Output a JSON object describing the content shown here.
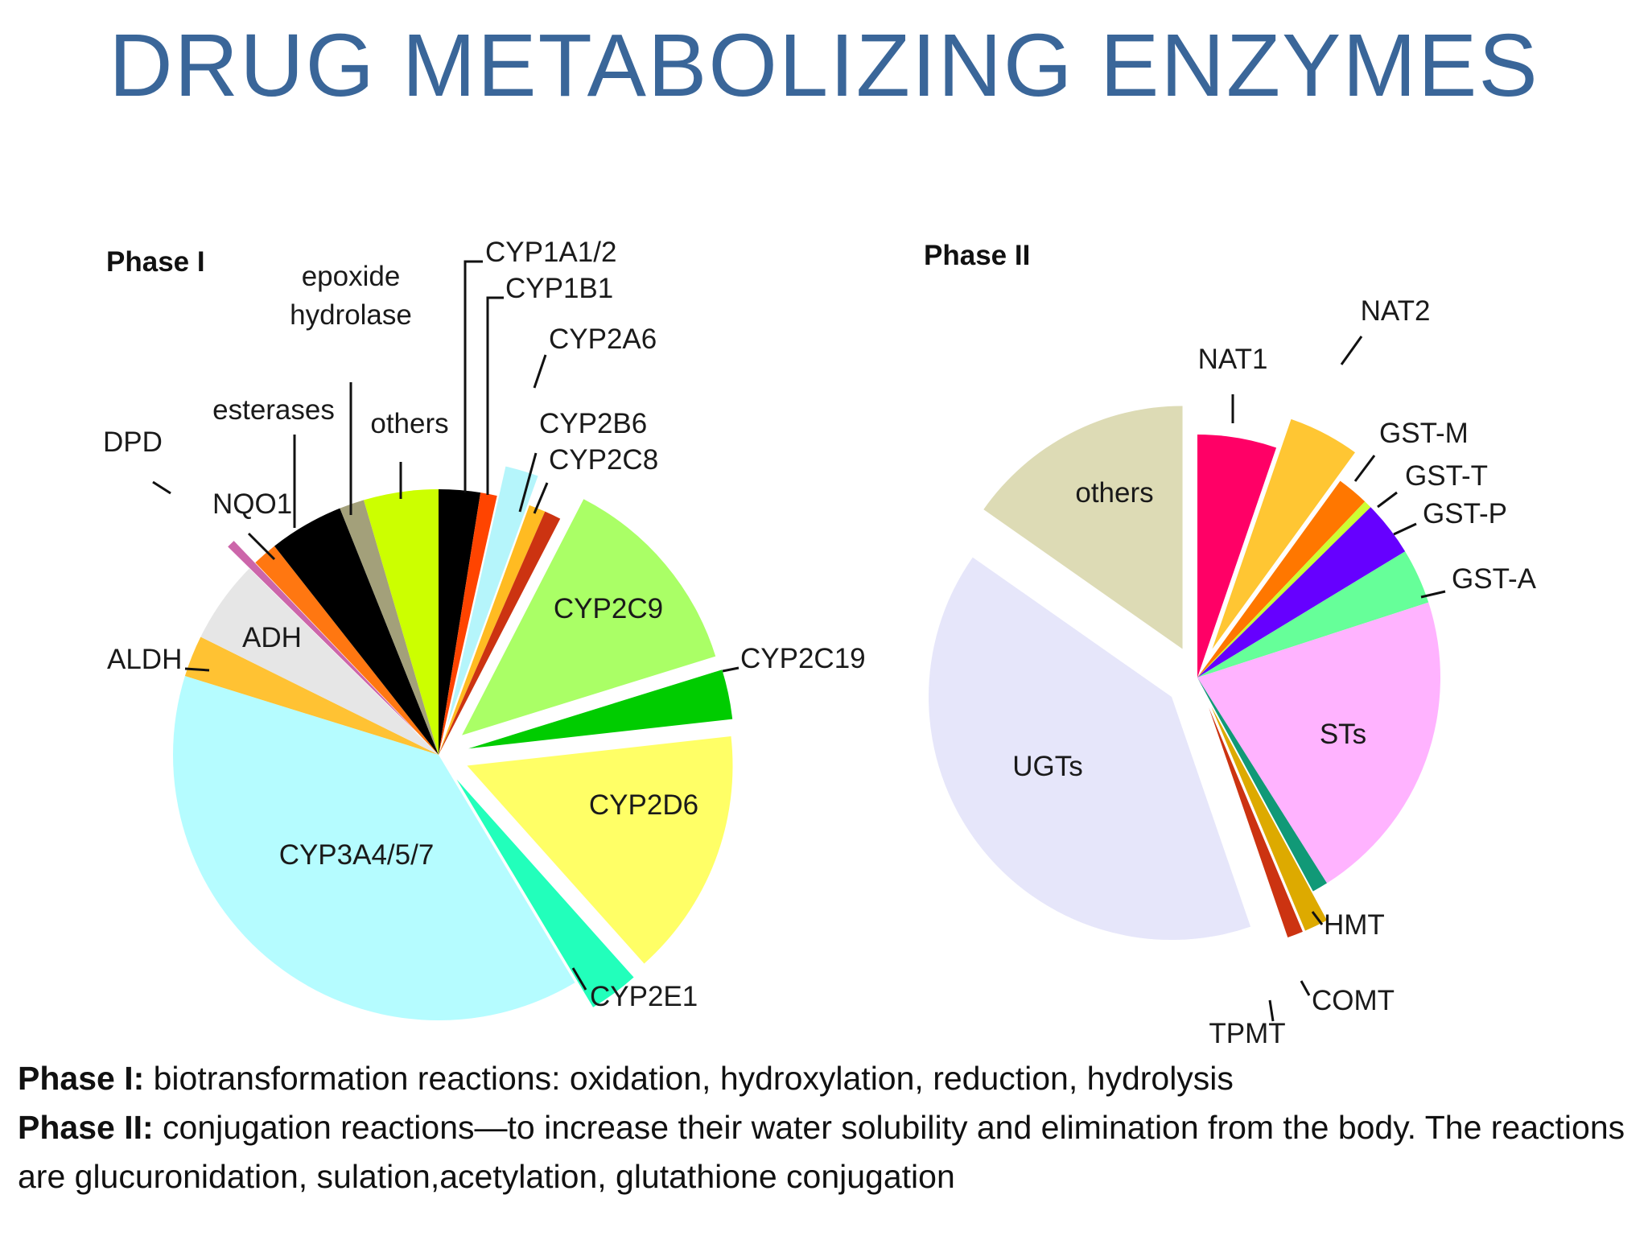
{
  "slide": {
    "title": "DRUG METABOLIZING ENZYMES",
    "caption": [
      {
        "bold": "Phase I:",
        "text": " biotransformation reactions:  oxidation, hydroxylation, reduction, hydrolysis"
      },
      {
        "bold": "Phase II:",
        "text": " conjugation reactions—to increase their water solubility and elimination from the body. The reactions are glucuronidation, sulation,acetylation, glutathione conjugation"
      }
    ]
  },
  "chart_data": [
    {
      "type": "pie",
      "title": "Phase I",
      "slices": [
        {
          "label": "CYP1A1/2",
          "value": 2.5,
          "color": "#000000",
          "exploded": false
        },
        {
          "label": "CYP1B1",
          "value": 1.0,
          "color": "#ff4400",
          "exploded": false
        },
        {
          "label": "CYP2A6",
          "value": 2.0,
          "color": "#b5f5fb",
          "exploded": true
        },
        {
          "label": "CYP2B6",
          "value": 1.0,
          "color": "#ffbb22",
          "exploded": false
        },
        {
          "label": "CYP2C8",
          "value": 1.0,
          "color": "#cc3311",
          "exploded": false
        },
        {
          "label": "CYP2C9",
          "value": 12.5,
          "color": "#aaff66",
          "exploded": true
        },
        {
          "label": "CYP2C19",
          "value": 3.0,
          "color": "#00cc00",
          "exploded": true
        },
        {
          "label": "CYP2D6",
          "value": 15.0,
          "color": "#ffff66",
          "exploded": true
        },
        {
          "label": "CYP2E1",
          "value": 3.0,
          "color": "#22ffbb",
          "exploded": true
        },
        {
          "label": "CYP3A4/5/7",
          "value": 38.0,
          "color": "#b5fcff",
          "exploded": false
        },
        {
          "label": "ALDH",
          "value": 2.5,
          "color": "#ffc233",
          "exploded": false
        },
        {
          "label": "ADH",
          "value": 5.0,
          "color": "#e6e6e6",
          "exploded": false
        },
        {
          "label": "DPD",
          "value": 0.5,
          "color": "#cc66aa",
          "exploded": true
        },
        {
          "label": "NQO1",
          "value": 1.5,
          "color": "#ff7711",
          "exploded": false
        },
        {
          "label": "esterases",
          "value": 4.5,
          "color": "#000000",
          "exploded": false
        },
        {
          "label": "epoxide hydrolase",
          "value": 1.5,
          "color": "#a3a07a",
          "exploded": false
        },
        {
          "label": "others",
          "value": 4.5,
          "color": "#ccff00",
          "exploded": false
        }
      ]
    },
    {
      "type": "pie",
      "title": "Phase II",
      "slices": [
        {
          "label": "NAT1",
          "value": 5.0,
          "color": "#ff0066",
          "exploded": false
        },
        {
          "label": "NAT2",
          "value": 4.5,
          "color": "#ffc633",
          "exploded": true
        },
        {
          "label": "GST-M",
          "value": 2.0,
          "color": "#ff7700",
          "exploded": false
        },
        {
          "label": "GST-T",
          "value": 0.5,
          "color": "#ccff33",
          "exploded": false
        },
        {
          "label": "GST-P",
          "value": 3.5,
          "color": "#6600ff",
          "exploded": false
        },
        {
          "label": "GST-A",
          "value": 3.5,
          "color": "#66ff99",
          "exploded": false
        },
        {
          "label": "STs",
          "value": 20.0,
          "color": "#ffb3ff",
          "exploded": false
        },
        {
          "label": "HMT",
          "value": 1.0,
          "color": "#119977",
          "exploded": false
        },
        {
          "label": "COMT",
          "value": 1.5,
          "color": "#ddaa00",
          "exploded": true
        },
        {
          "label": "TPMT",
          "value": 1.0,
          "color": "#cc3311",
          "exploded": true
        },
        {
          "label": "UGTs",
          "value": 38.0,
          "color": "#e6e6fa",
          "exploded": true
        },
        {
          "label": "others",
          "value": 14.5,
          "color": "#dddbb5",
          "exploded": true
        }
      ]
    }
  ]
}
